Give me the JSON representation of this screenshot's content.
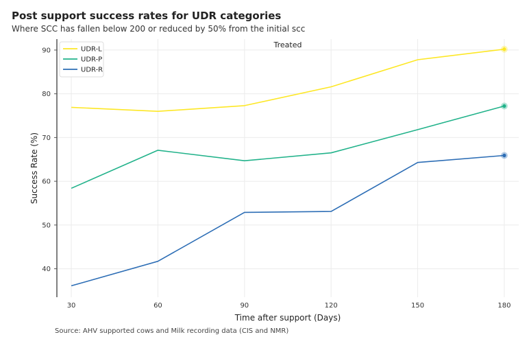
{
  "header": {
    "title": "Post support success rates for UDR categories",
    "subtitle": "Where SCC has fallen below 200 or reduced by 50% from the initial scc"
  },
  "footer": {
    "source": "Source: AHV supported cows and Milk recording data (CIS and NMR)"
  },
  "chart_data": {
    "type": "line",
    "title": "Post support success rates for UDR categories",
    "subtitle": "Where SCC has fallen below 200 or reduced by 50% from the initial scc",
    "panel_label": "Treated",
    "xlabel": "Time after support (Days)",
    "ylabel": "Success Rate (%)",
    "x": [
      30,
      60,
      90,
      120,
      150,
      180
    ],
    "x_ticks": [
      30,
      60,
      90,
      120,
      150,
      180
    ],
    "y_ticks": [
      40,
      50,
      60,
      70,
      80,
      90
    ],
    "xlim": [
      25,
      185
    ],
    "ylim": [
      33.5,
      92.5
    ],
    "grid": true,
    "legend_position": "top-left",
    "end_markers": true,
    "series": [
      {
        "name": "UDR-L",
        "color": "#fde725",
        "values": [
          76.9,
          76.0,
          77.3,
          81.6,
          87.8,
          90.2
        ]
      },
      {
        "name": "UDR-P",
        "color": "#21b28a",
        "values": [
          58.4,
          67.1,
          64.7,
          66.5,
          71.8,
          77.2
        ]
      },
      {
        "name": "UDR-R",
        "color": "#2c6db5",
        "values": [
          36.1,
          41.7,
          52.9,
          53.1,
          64.3,
          65.9
        ]
      }
    ]
  }
}
